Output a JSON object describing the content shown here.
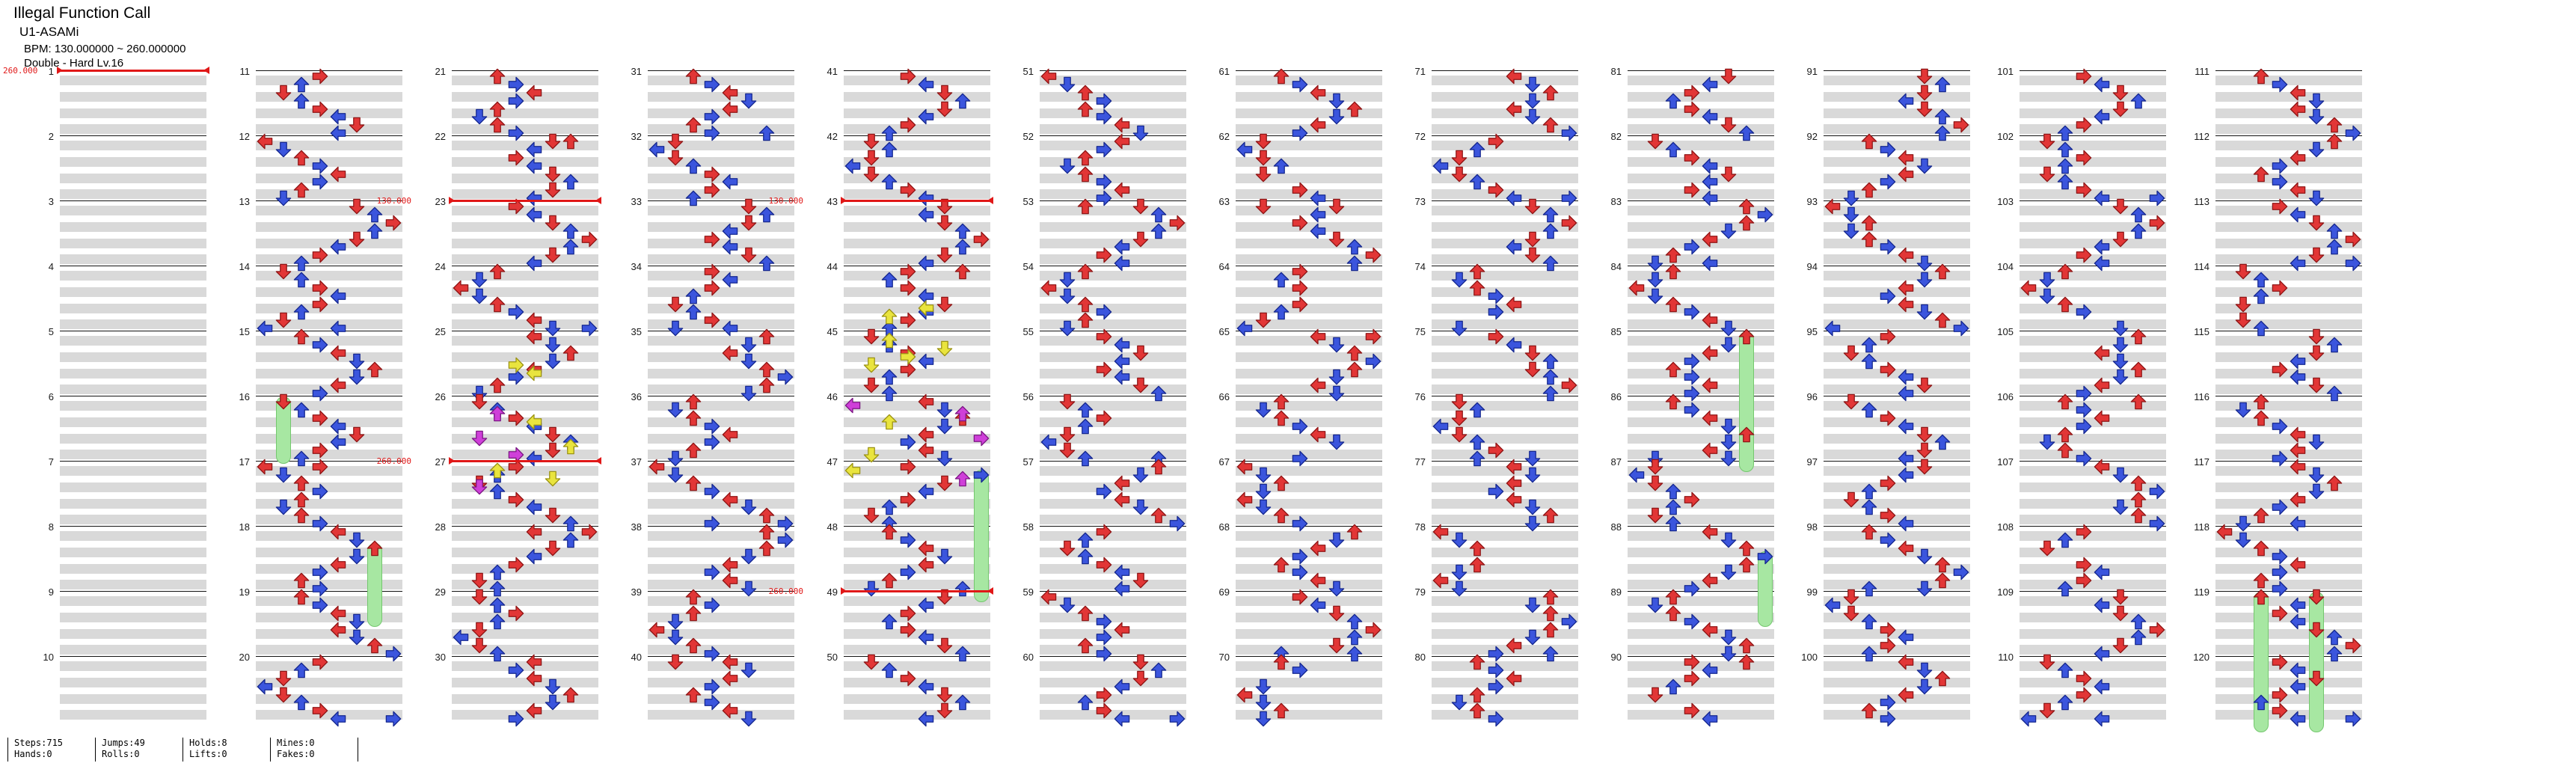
{
  "header": {
    "title": "Illegal Function Call",
    "artist": "U1-ASAMi",
    "bpm": "BPM: 130.000000 ~ 260.000000",
    "difficulty": "Double - Hard Lv.16"
  },
  "footer": {
    "groups": [
      {
        "top": "Steps:715",
        "bottom": "Hands:0"
      },
      {
        "top": "Jumps:49",
        "bottom": "Rolls:0"
      },
      {
        "top": "Holds:8",
        "bottom": "Lifts:0"
      },
      {
        "top": "Mines:0",
        "bottom": "Fakes:0"
      }
    ]
  },
  "chart": {
    "colors": {
      "quarter": {
        "f": "#e23636",
        "s": "#8f1616"
      },
      "eighth": {
        "f": "#3b55dd",
        "s": "#16288f"
      },
      "sixteenth": {
        "f": "#e9e43e",
        "s": "#9b9314"
      },
      "twelfth": {
        "f": "#cf3fd9",
        "s": "#7c1884"
      },
      "hold": {
        "f": "#a7e7a2",
        "s": "#74c76e"
      },
      "bpm": "#e01818",
      "stripe": "#d9d9d9"
    },
    "measures": [
      {
        "n": 1,
        "bpm": "260.000"
      },
      {
        "n": 2
      },
      {
        "n": 3
      },
      {
        "n": 4
      },
      {
        "n": 5
      },
      {
        "n": 6
      },
      {
        "n": 7
      },
      {
        "n": 8
      },
      {
        "n": 9
      },
      {
        "n": 10
      },
      {
        "n": 11,
        "p": "3 2 1 2 3 4 5 4"
      },
      {
        "n": 12,
        "p": "0 1 2 3 4 3 2 1"
      },
      {
        "n": 13,
        "p": "5 6 7 6 5 4 3 2"
      },
      {
        "n": 14,
        "p": "1 2 3 4 3 2 1 04"
      },
      {
        "n": 15,
        "p": "2 3 4 5 6 5 4 3"
      },
      {
        "n": 16,
        "p": "1 2 3 4 5 4 3 2",
        "holds": [
          [
            1,
            0,
            7
          ]
        ]
      },
      {
        "n": 17,
        "p": "03 1 2 3 2 1 2 3"
      },
      {
        "n": 18,
        "p": "4 5 6 5 4 3 2 3",
        "holds": [
          [
            6,
            2,
            11
          ]
        ]
      },
      {
        "n": 19,
        "p": "2 3 4 5 4 5 6 7"
      },
      {
        "n": 20,
        "p": "3 2 1 0 1 2 3 47"
      },
      {
        "n": 21,
        "p": "2 3 4 3 2 1 2 3"
      },
      {
        "n": 22,
        "p": "56 4 3 4 5 6 5 4"
      },
      {
        "n": 23,
        "p": "3 4 5 6 7 6 5 4",
        "bpm": "130.000"
      },
      {
        "n": 24,
        "p": "2 1 0 1 2 3 4 57"
      },
      {
        "n": 25,
        "p": "4 5 6 5 4 3 2 1",
        "extras": [
          [
            7,
            3,
            "y"
          ],
          [
            9,
            4,
            "y"
          ]
        ]
      },
      {
        "n": 26,
        "p": "1 2 3 4 5 6 5 4",
        "extras": [
          [
            3,
            2,
            "p"
          ],
          [
            5,
            4,
            "y"
          ],
          [
            9,
            1,
            "p"
          ],
          [
            11,
            6,
            "y"
          ],
          [
            13,
            3,
            "p"
          ]
        ]
      },
      {
        "n": 27,
        "p": "3 2 1 2 3 4 5 6",
        "bpm": "260.000",
        "extras": [
          [
            1,
            2,
            "y"
          ],
          [
            3,
            5,
            "y"
          ],
          [
            5,
            1,
            "p"
          ]
        ]
      },
      {
        "n": 28,
        "p": "47 6 5 4 3 2 1 2"
      },
      {
        "n": 29,
        "p": "1 2 3 2 1 0 1 2"
      },
      {
        "n": 30,
        "p": "4 3 4 5 6 5 4 3"
      },
      {
        "n": 31,
        "p": "2 3 4 5 4 3 2 36"
      },
      {
        "n": 32,
        "p": "1 0 1 2 3 4 3 2"
      },
      {
        "n": 33,
        "p": "5 6 5 4 3 4 5 6"
      },
      {
        "n": 34,
        "p": "3 4 3 2 1 2 3 14"
      },
      {
        "n": 35,
        "p": "6 5 4 5 6 7 6 5"
      },
      {
        "n": 36,
        "p": "2 1 2 3 4 3 2 1"
      },
      {
        "n": 37,
        "p": "0 1 2 3 4 5 6 37"
      },
      {
        "n": 38,
        "p": "6 7 6 5 4 3 4 5"
      },
      {
        "n": 39,
        "p": "2 3 2 1 0 1 2 3"
      },
      {
        "n": 40,
        "p": "14 5 4 3 2 3 4 5"
      },
      {
        "n": 41,
        "p": "3 4 5 6 5 4 3 2"
      },
      {
        "n": 42,
        "p": "1 2 1 0 1 2 3 4"
      },
      {
        "n": 43,
        "p": "5 4 5 6 7 6 5 4",
        "bpm": "130.000"
      },
      {
        "n": 44,
        "p": "36 2 3 4 5 4 3 2",
        "extras": [
          [
            9,
            4,
            "y"
          ],
          [
            11,
            2,
            "y"
          ]
        ]
      },
      {
        "n": 45,
        "p": "1 2 3 4 3 2 1 2",
        "extras": [
          [
            1,
            2,
            "y"
          ],
          [
            3,
            5,
            "y"
          ],
          [
            5,
            3,
            "y"
          ],
          [
            7,
            1,
            "y"
          ]
        ]
      },
      {
        "n": 46,
        "p": "4 5 6 5 4 3 4 5",
        "extras": [
          [
            1,
            0,
            "p"
          ],
          [
            3,
            6,
            "p"
          ],
          [
            5,
            2,
            "y"
          ],
          [
            9,
            7,
            "p"
          ],
          [
            13,
            1,
            "y"
          ]
        ]
      },
      {
        "n": 47,
        "p": "3 7 5 4 3 2 1 2",
        "holds": [
          [
            7,
            1,
            16
          ]
        ],
        "extras": [
          [
            1,
            0,
            "y"
          ],
          [
            3,
            6,
            "p"
          ]
        ]
      },
      {
        "n": 48,
        "p": "2 3 4 5 4 3 2 16"
      },
      {
        "n": 49,
        "p": "5 4 3 2 3 4 5 6",
        "bpm": "260.000"
      },
      {
        "n": 50,
        "p": "1 2 3 4 5 6 5 4"
      },
      {
        "n": 51,
        "p": "0 1 2 3 2 3 4 5"
      },
      {
        "n": 52,
        "p": "4 3 2 1 2 3 4 3"
      },
      {
        "n": 53,
        "p": "25 6 7 6 5 4 3 4"
      },
      {
        "n": 54,
        "p": "2 1 0 1 2 3 2 1"
      },
      {
        "n": 55,
        "p": "3 4 5 4 3 4 5 6"
      },
      {
        "n": 56,
        "p": "1 2 3 2 1 0 1 26"
      },
      {
        "n": 57,
        "p": "6 5 4 3 4 5 6 7"
      },
      {
        "n": 58,
        "p": "3 2 1 2 3 4 5 4"
      },
      {
        "n": 59,
        "p": "0 1 2 3 4 3 2 3"
      },
      {
        "n": 60,
        "p": "5 6 5 4 3 2 3 47"
      },
      {
        "n": 61,
        "p": "2 3 4 5 6 5 4 3"
      },
      {
        "n": 62,
        "p": "1 0 1 2 1 . 3 4"
      },
      {
        "n": 63,
        "p": "15 4 3 4 5 6 7 6"
      },
      {
        "n": 64,
        "p": "3 2 3 . 3 2 1 0"
      },
      {
        "n": 65,
        "p": "47 5 6 7 6 5 4 5"
      },
      {
        "n": 66,
        "p": "2 1 2 3 4 5 . 3"
      },
      {
        "n": 67,
        "p": "0 1 2 1 0 1 2 3"
      },
      {
        "n": 68,
        "p": "6 5 4 3 2 3 4 5"
      },
      {
        "n": 69,
        "p": "3 4 5 6 7 6 5 26"
      },
      {
        "n": 70,
        "p": "2 3 . 1 0 1 2 1"
      },
      {
        "n": 71,
        "p": "4 5 6 5 4 5 6 7"
      },
      {
        "n": 72,
        "p": "3 2 1 0 1 2 3 47"
      },
      {
        "n": 73,
        "p": "5 6 7 6 5 4 5 6"
      },
      {
        "n": 74,
        "p": "2 1 2 3 4 3 . 1"
      },
      {
        "n": 75,
        "p": "3 4 5 6 5 6 7 6"
      },
      {
        "n": 76,
        "p": "1 2 1 0 1 2 3 25"
      },
      {
        "n": 77,
        "p": "4 5 4 3 4 5 6 5"
      },
      {
        "n": 78,
        "p": "0 1 2 . 2 1 0 1"
      },
      {
        "n": 79,
        "p": "6 5 6 7 6 5 4 36"
      },
      {
        "n": 80,
        "p": "2 3 4 3 2 1 2 3"
      },
      {
        "n": 81,
        "p": "5 4 3 2 3 4 5 6"
      },
      {
        "n": 82,
        "p": "1 2 3 4 5 4 3 4"
      },
      {
        "n": 83,
        "p": "6 7 6 5 4 3 2 14"
      },
      {
        "n": 84,
        "p": "2 1 0 1 2 3 4 5"
      },
      {
        "n": 85,
        "p": "6 5 4 3 2 3 4 3",
        "holds": [
          [
            6,
            0,
            16
          ]
        ]
      },
      {
        "n": 86,
        "p": "2 3 4 5 6 5 4 15"
      },
      {
        "n": 87,
        "p": "1 0 1 2 3 2 1 2"
      },
      {
        "n": 88,
        "p": "4 5 6 7 6 5 4 3",
        "holds": [
          [
            7,
            3,
            11
          ]
        ]
      },
      {
        "n": 89,
        "p": "2 1 2 3 4 5 6 5"
      },
      {
        "n": 90,
        "p": "36 4 3 2 1 . 3 4"
      },
      {
        "n": 91,
        "p": "5 6 5 4 5 6 7 6"
      },
      {
        "n": 92,
        "p": "2 3 4 5 4 3 2 1"
      },
      {
        "n": 93,
        "p": "0 1 2 1 2 3 4 5"
      },
      {
        "n": 94,
        "p": "6 5 4 3 4 5 6 07"
      },
      {
        "n": 95,
        "p": "3 2 1 2 3 4 5 4"
      },
      {
        "n": 96,
        "p": "1 2 3 4 5 6 5 4"
      },
      {
        "n": 97,
        "p": "5 4 3 2 1 2 3 4"
      },
      {
        "n": 98,
        "p": "2 3 4 5 6 7 6 25"
      },
      {
        "n": 99,
        "p": "1 0 1 2 3 4 3 2"
      },
      {
        "n": 100,
        "p": "4 5 6 5 4 3 2 3"
      },
      {
        "n": 101,
        "p": "3 4 5 6 5 4 3 2"
      },
      {
        "n": 102,
        "p": "1 2 3 2 1 2 3 47"
      },
      {
        "n": 103,
        "p": "5 6 7 6 5 4 3 4"
      },
      {
        "n": 104,
        "p": "2 1 0 1 2 3 . 5"
      },
      {
        "n": 105,
        "p": "6 5 4 5 6 5 4 3"
      },
      {
        "n": 106,
        "p": "26 3 4 3 2 1 2 3"
      },
      {
        "n": 107,
        "p": "4 5 6 7 6 5 6 7"
      },
      {
        "n": 108,
        "p": "3 2 1 . 3 4 3 2"
      },
      {
        "n": 109,
        "p": "5 4 5 6 7 6 5 4"
      },
      {
        "n": 110,
        "p": "1 2 3 4 3 2 1 04"
      },
      {
        "n": 111,
        "p": "2 3 4 5 4 5 6 7"
      },
      {
        "n": 112,
        "p": "6 5 4 3 2 3 4 5"
      },
      {
        "n": 113,
        "p": "3 4 5 6 7 6 5 47"
      },
      {
        "n": 114,
        "p": "1 2 3 2 1 . 1 2"
      },
      {
        "n": 115,
        "p": "5 6 5 4 3 4 5 6"
      },
      {
        "n": 116,
        "p": "2 1 2 3 4 5 4 3"
      },
      {
        "n": 117,
        "p": "4 5 6 5 4 3 2 14"
      },
      {
        "n": 118,
        "p": "0 1 2 3 4 3 2 3"
      },
      {
        "n": 119,
        "p": "25 4 3 4 5 6 7 6",
        "holds": [
          [
            2,
            0,
            16
          ],
          [
            5,
            0,
            16
          ]
        ]
      },
      {
        "n": 120,
        "p": "3 4 5 4 3 2 3 47"
      }
    ]
  }
}
